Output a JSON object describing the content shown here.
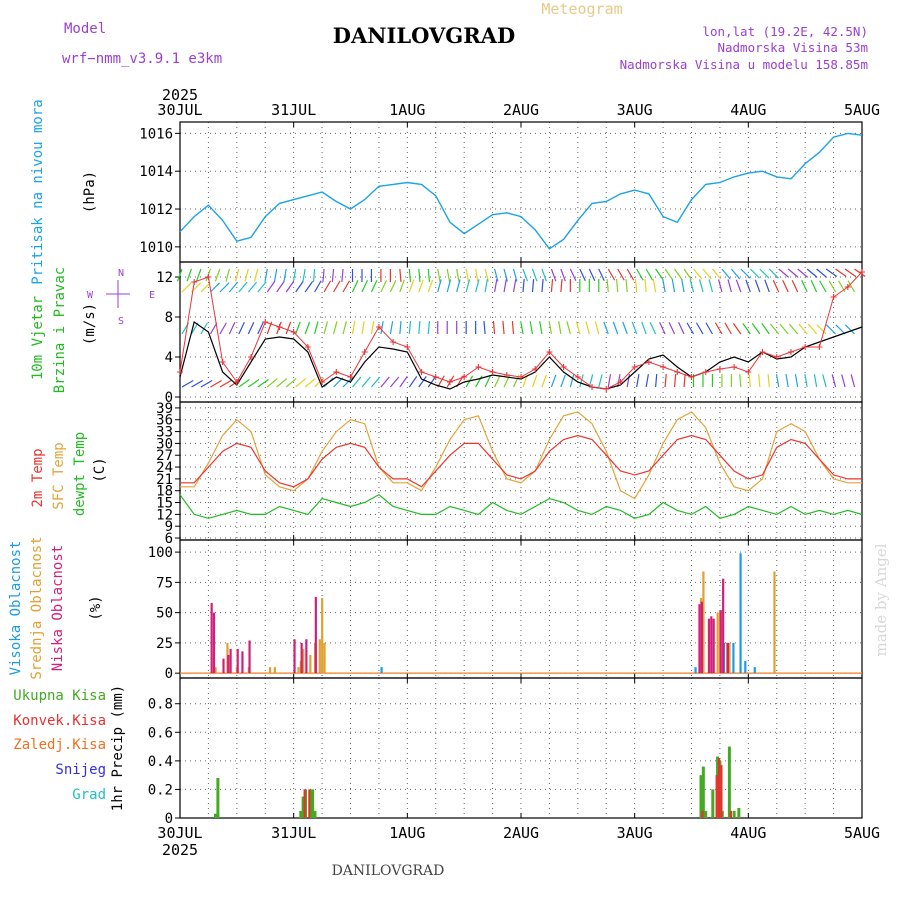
{
  "header": {
    "model_label": "Model",
    "model_name": "wrf−nmm_v3.9.1  e3km",
    "title": "DANILOVGRAD",
    "subtitle": "Meteogram",
    "lonlat": "lon,lat (19.2E, 42.5N)",
    "altitude": "Nadmorska Visina 53m",
    "model_altitude": "Nadmorska Visina u modelu 158.85m",
    "year_top": "2025",
    "footer_title": "DANILOVGRAD",
    "watermark": "made by Angel"
  },
  "colors": {
    "pressure": "#1aa3e8",
    "wind_speed": "#000000",
    "gust": "#e8363a",
    "t2m": "#e8362e",
    "sfc": "#e3a43a",
    "dewpt": "#22bb22",
    "high_cloud": "#1e9be6",
    "mid_cloud": "#e0a030",
    "low_cloud": "#d0207a",
    "total_rain": "#44aa22",
    "conv_rain": "#e83030",
    "frz_rain": "#f07020",
    "snow": "#3030e0",
    "hail": "#20c0c0",
    "purple": "#9a3fd0"
  },
  "chart_data": [
    {
      "type": "line",
      "id": "pressure",
      "ylabel_lines": [
        "Pritisak na nivou mora",
        "(hPa)"
      ],
      "ylim": [
        1009.2,
        1016.6
      ],
      "yticks": [
        1010,
        1012,
        1014,
        1016
      ],
      "x_hours": [
        0,
        3,
        6,
        9,
        12,
        15,
        18,
        21,
        24,
        27,
        30,
        33,
        36,
        39,
        42,
        45,
        48,
        51,
        54,
        57,
        60,
        63,
        66,
        69,
        72,
        75,
        78,
        81,
        84,
        87,
        90,
        93,
        96,
        99,
        102,
        105,
        108,
        111,
        114,
        117,
        120,
        123,
        126,
        129,
        132,
        135,
        138,
        141,
        144
      ],
      "values": [
        1010.8,
        1011.6,
        1012.2,
        1011.4,
        1010.3,
        1010.5,
        1011.6,
        1012.3,
        1012.5,
        1012.7,
        1012.9,
        1012.4,
        1012.0,
        1012.5,
        1013.2,
        1013.3,
        1013.4,
        1013.3,
        1012.7,
        1011.3,
        1010.7,
        1011.2,
        1011.7,
        1011.8,
        1011.6,
        1010.9,
        1009.9,
        1010.4,
        1011.4,
        1012.3,
        1012.4,
        1012.8,
        1013.0,
        1012.8,
        1011.6,
        1011.3,
        1012.5,
        1013.3,
        1013.4,
        1013.7,
        1013.9,
        1014.0,
        1013.7,
        1013.6,
        1014.4,
        1015.0,
        1015.8,
        1016.0,
        1015.9
      ]
    },
    {
      "type": "line",
      "id": "wind",
      "ylabel_lines": [
        "10m Vjetar",
        "Brzina i Pravac",
        "(m/s)"
      ],
      "compass": {
        "n": "N",
        "s": "S",
        "w": "W",
        "e": "E"
      },
      "ylim": [
        -0.5,
        13.5
      ],
      "yticks": [
        0,
        4,
        8,
        12
      ],
      "x_hours": [
        0,
        3,
        6,
        9,
        12,
        15,
        18,
        21,
        24,
        27,
        30,
        33,
        36,
        39,
        42,
        45,
        48,
        51,
        54,
        57,
        60,
        63,
        66,
        69,
        72,
        75,
        78,
        81,
        84,
        87,
        90,
        93,
        96,
        99,
        102,
        105,
        108,
        111,
        114,
        117,
        120,
        123,
        126,
        129,
        132,
        135,
        138,
        141,
        144
      ],
      "series": [
        {
          "name": "Brzina",
          "values": [
            2.0,
            7.5,
            6.5,
            2.5,
            1.2,
            3.5,
            5.8,
            6.0,
            5.8,
            4.5,
            1.0,
            2.0,
            1.5,
            3.5,
            5.0,
            4.8,
            4.5,
            1.8,
            1.2,
            0.8,
            1.5,
            1.8,
            2.2,
            2.0,
            1.8,
            2.5,
            4.0,
            2.5,
            1.5,
            1.0,
            0.8,
            1.2,
            2.5,
            3.8,
            4.2,
            3.0,
            2.0,
            2.5,
            3.5,
            4.0,
            3.5,
            4.5,
            3.8,
            4.0,
            5.0,
            5.5,
            6.0,
            6.5,
            7.0
          ]
        },
        {
          "name": "Udari",
          "values": [
            2.5,
            11.5,
            12.0,
            3.5,
            1.5,
            4.0,
            7.5,
            7.0,
            6.5,
            5.0,
            1.5,
            2.5,
            2.0,
            4.5,
            7.0,
            5.5,
            5.0,
            2.5,
            2.0,
            1.5,
            2.0,
            3.0,
            2.5,
            2.2,
            2.0,
            2.8,
            4.5,
            3.0,
            2.0,
            1.0,
            0.8,
            1.5,
            3.0,
            3.5,
            3.0,
            2.5,
            2.0,
            2.5,
            2.8,
            3.0,
            2.5,
            4.5,
            4.0,
            4.5,
            5.0,
            5.0,
            10.0,
            11.0,
            12.5
          ]
        }
      ],
      "arrow_rows": [
        {
          "level": 12.8,
          "angles": [
            200,
            195,
            190,
            185,
            180,
            175,
            170,
            165,
            160,
            155,
            150,
            145,
            140,
            135,
            130,
            125,
            120
          ]
        },
        {
          "level": 10.5,
          "angles": [
            45,
            40,
            35,
            30,
            25,
            20,
            15,
            10,
            5,
            0,
            355,
            350,
            345,
            340,
            335,
            330,
            325
          ]
        },
        {
          "level": 6.3,
          "angles": [
            30,
            25,
            20,
            15,
            10,
            5,
            0,
            355,
            350,
            345,
            340,
            335,
            330,
            325,
            320,
            315,
            310
          ]
        },
        {
          "level": 1.0,
          "angles": [
            60,
            55,
            50,
            45,
            40,
            35,
            30,
            25,
            20,
            15,
            10,
            5,
            0,
            355,
            350,
            345,
            340
          ]
        }
      ]
    },
    {
      "type": "line",
      "id": "temperature",
      "ylabel_lines": [
        "2m Temp",
        "SFC Temp",
        "dewpt Temp",
        "(C)"
      ],
      "ylim": [
        5.5,
        40.5
      ],
      "yticks": [
        6,
        9,
        12,
        15,
        18,
        21,
        24,
        27,
        30,
        33,
        36,
        39
      ],
      "x_hours": [
        0,
        3,
        6,
        9,
        12,
        15,
        18,
        21,
        24,
        27,
        30,
        33,
        36,
        39,
        42,
        45,
        48,
        51,
        54,
        57,
        60,
        63,
        66,
        69,
        72,
        75,
        78,
        81,
        84,
        87,
        90,
        93,
        96,
        99,
        102,
        105,
        108,
        111,
        114,
        117,
        120,
        123,
        126,
        129,
        132,
        135,
        138,
        141,
        144
      ],
      "series": [
        {
          "name": "2m Temp",
          "values": [
            20,
            20,
            24,
            28,
            30,
            29,
            23,
            20,
            19,
            21,
            26,
            29,
            30,
            29,
            24,
            21,
            21,
            19,
            23,
            27,
            30,
            30,
            26,
            22,
            21,
            23,
            28,
            31,
            32,
            31,
            27,
            23,
            22,
            23,
            27,
            31,
            32,
            31,
            27,
            23,
            21,
            22,
            29,
            31,
            30,
            26,
            22,
            21,
            21
          ]
        },
        {
          "name": "SFC Temp",
          "values": [
            19,
            19,
            25,
            32,
            36,
            33,
            22,
            19,
            18,
            21,
            28,
            33,
            36,
            35,
            24,
            20,
            20,
            18,
            24,
            31,
            36,
            37,
            28,
            21,
            20,
            23,
            31,
            37,
            38,
            35,
            28,
            18,
            16,
            22,
            30,
            36,
            38,
            34,
            25,
            19,
            18,
            21,
            33,
            35,
            33,
            26,
            21,
            20,
            20
          ]
        },
        {
          "name": "dewpt Temp",
          "values": [
            17,
            12,
            11,
            12,
            13,
            12,
            12,
            14,
            13,
            12,
            16,
            15,
            14,
            15,
            17,
            14,
            13,
            12,
            12,
            14,
            13,
            12,
            15,
            13,
            12,
            14,
            16,
            15,
            13,
            12,
            14,
            13,
            11,
            12,
            15,
            13,
            12,
            14,
            11,
            12,
            14,
            13,
            12,
            14,
            12,
            13,
            12,
            13,
            12
          ]
        }
      ]
    },
    {
      "type": "bar",
      "id": "clouds",
      "ylabel_lines": [
        "Visoka Oblacnost",
        "Srednja Oblacnost",
        "Niska Oblacnost",
        "(%)"
      ],
      "ylim": [
        -4,
        110
      ],
      "yticks": [
        0,
        25,
        50,
        75,
        100
      ],
      "series": [
        {
          "name": "Visoka Oblacnost",
          "points": [
            [
              42.2,
              5
            ],
            [
              108.5,
              5
            ],
            [
              114.5,
              25
            ],
            [
              116.5,
              25
            ],
            [
              118.0,
              99
            ],
            [
              119.0,
              10
            ],
            [
              121.0,
              5
            ]
          ]
        },
        {
          "name": "Srednja Oblacnost",
          "points": [
            [
              7.5,
              5
            ],
            [
              10.0,
              25
            ],
            [
              12.0,
              5
            ],
            [
              14.5,
              5
            ],
            [
              19.0,
              5
            ],
            [
              20.0,
              5
            ],
            [
              25.0,
              5
            ],
            [
              25.5,
              10
            ],
            [
              26.0,
              20
            ],
            [
              27.5,
              15
            ],
            [
              28.5,
              25
            ],
            [
              29.5,
              28
            ],
            [
              30.0,
              62
            ],
            [
              30.5,
              25
            ],
            [
              110.0,
              62
            ],
            [
              110.5,
              84
            ],
            [
              113.5,
              50
            ],
            [
              114.0,
              52
            ],
            [
              115.5,
              25
            ],
            [
              116.0,
              25
            ],
            [
              125.5,
              84
            ]
          ]
        },
        {
          "name": "Niska Oblacnost",
          "points": [
            [
              7.0,
              58
            ],
            [
              7.5,
              50
            ],
            [
              9.5,
              12
            ],
            [
              10.5,
              15
            ],
            [
              11.0,
              20
            ],
            [
              12.5,
              20
            ],
            [
              13.5,
              18
            ],
            [
              15.0,
              27
            ],
            [
              24.5,
              28
            ],
            [
              26.0,
              25
            ],
            [
              27.0,
              28
            ],
            [
              29.0,
              63
            ],
            [
              110.0,
              57
            ],
            [
              110.5,
              59
            ],
            [
              112.0,
              45
            ],
            [
              112.5,
              47
            ],
            [
              113.0,
              45
            ],
            [
              114.5,
              52
            ],
            [
              115.0,
              78
            ],
            [
              116.0,
              25
            ]
          ]
        }
      ]
    },
    {
      "type": "bar",
      "id": "precip",
      "ylabel_lines": [
        "1hr Precip (mm)"
      ],
      "legend": [
        "Ukupna Kisa",
        "Konvek.Kisa",
        "Zaledj.Kisa",
        "Snijeg",
        "Grad"
      ],
      "ylim": [
        0,
        0.98
      ],
      "yticks": [
        0,
        0.2,
        0.4,
        0.6,
        0.8
      ],
      "x_start_date": "30JUL 2025",
      "series": [
        {
          "name": "Ukupna Kisa",
          "points": [
            [
              7.5,
              0.03
            ],
            [
              8.0,
              0.28
            ],
            [
              25.5,
              0.05
            ],
            [
              26.0,
              0.15
            ],
            [
              26.5,
              0.2
            ],
            [
              27.5,
              0.2
            ],
            [
              28.0,
              0.2
            ],
            [
              28.5,
              0.05
            ],
            [
              110.0,
              0.3
            ],
            [
              110.5,
              0.36
            ],
            [
              111.0,
              0.05
            ],
            [
              112.5,
              0.2
            ],
            [
              113.5,
              0.43
            ],
            [
              114.0,
              0.4
            ],
            [
              114.5,
              0.05
            ],
            [
              116.0,
              0.5
            ],
            [
              117.0,
              0.05
            ],
            [
              118.0,
              0.07
            ]
          ]
        },
        {
          "name": "Konvek.Kisa",
          "points": [
            [
              26.0,
              0.2
            ],
            [
              27.0,
              0.2
            ],
            [
              110.0,
              0.05
            ],
            [
              113.0,
              0.3
            ],
            [
              113.5,
              0.42
            ],
            [
              114.0,
              0.37
            ],
            [
              116.0,
              0.05
            ]
          ]
        }
      ],
      "xaxis": {
        "hours": [
          0,
          24,
          48,
          72,
          96,
          120,
          144
        ],
        "labels": [
          "30JUL",
          "31JUL",
          "1AUG",
          "2AUG",
          "3AUG",
          "4AUG",
          "5AUG"
        ],
        "year": "2025"
      }
    }
  ]
}
